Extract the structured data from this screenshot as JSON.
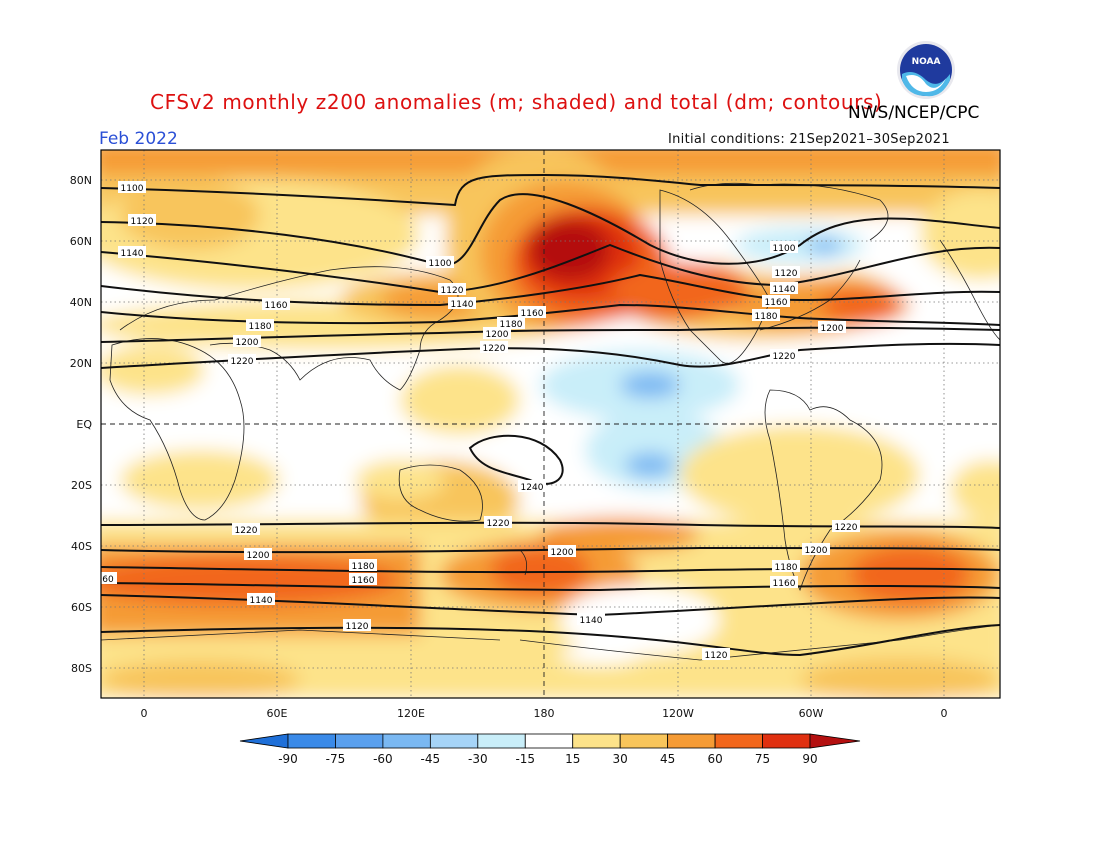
{
  "header": {
    "title": "CFSv2 monthly z200 anomalies (m; shaded) and total (dm; contours)",
    "agency": "NWS/NCEP/CPC",
    "month": "Feb 2022",
    "initial_conditions": "Initial conditions: 21Sep2021–30Sep2021",
    "logo_text": "NOAA"
  },
  "axes": {
    "lat_labels": [
      "80N",
      "60N",
      "40N",
      "20N",
      "EQ",
      "20S",
      "40S",
      "60S",
      "80S"
    ],
    "lon_labels": [
      "0",
      "60E",
      "120E",
      "180",
      "120W",
      "60W",
      "0"
    ]
  },
  "colorbar": {
    "ticks": [
      "-90",
      "-75",
      "-60",
      "-45",
      "-30",
      "-15",
      "15",
      "30",
      "45",
      "60",
      "75",
      "90"
    ],
    "colors": [
      "#1e6fd8",
      "#3a8ae8",
      "#5aa0ee",
      "#7ab8f2",
      "#a6d4f7",
      "#c9eef9",
      "#ffffff",
      "#fde38a",
      "#f8c55b",
      "#f59b35",
      "#f2661b",
      "#e03010",
      "#b41010"
    ]
  },
  "contour_labels": {
    "north": [
      {
        "v": "1100"
      },
      {
        "v": "1120"
      },
      {
        "v": "1140"
      },
      {
        "v": "1160"
      },
      {
        "v": "1180"
      },
      {
        "v": "1200"
      },
      {
        "v": "1220"
      },
      {
        "v": "1100"
      },
      {
        "v": "1120"
      },
      {
        "v": "1140"
      },
      {
        "v": "1160"
      },
      {
        "v": "1180"
      },
      {
        "v": "1200"
      },
      {
        "v": "1220"
      },
      {
        "v": "1100"
      },
      {
        "v": "1120"
      },
      {
        "v": "1140"
      },
      {
        "v": "1160"
      },
      {
        "v": "1180"
      },
      {
        "v": "1200"
      },
      {
        "v": "1220"
      }
    ],
    "south": [
      {
        "v": "1240"
      },
      {
        "v": "1220"
      },
      {
        "v": "1200"
      },
      {
        "v": "1220"
      },
      {
        "v": "1200"
      },
      {
        "v": "1180"
      },
      {
        "v": "1160"
      },
      {
        "v": "1140"
      },
      {
        "v": "1120"
      },
      {
        "v": "1200"
      },
      {
        "v": "1180"
      },
      {
        "v": "1160"
      },
      {
        "v": "1140"
      },
      {
        "v": "1120"
      },
      {
        "v": "1220"
      },
      {
        "v": "1200"
      },
      {
        "v": "60"
      }
    ]
  }
}
